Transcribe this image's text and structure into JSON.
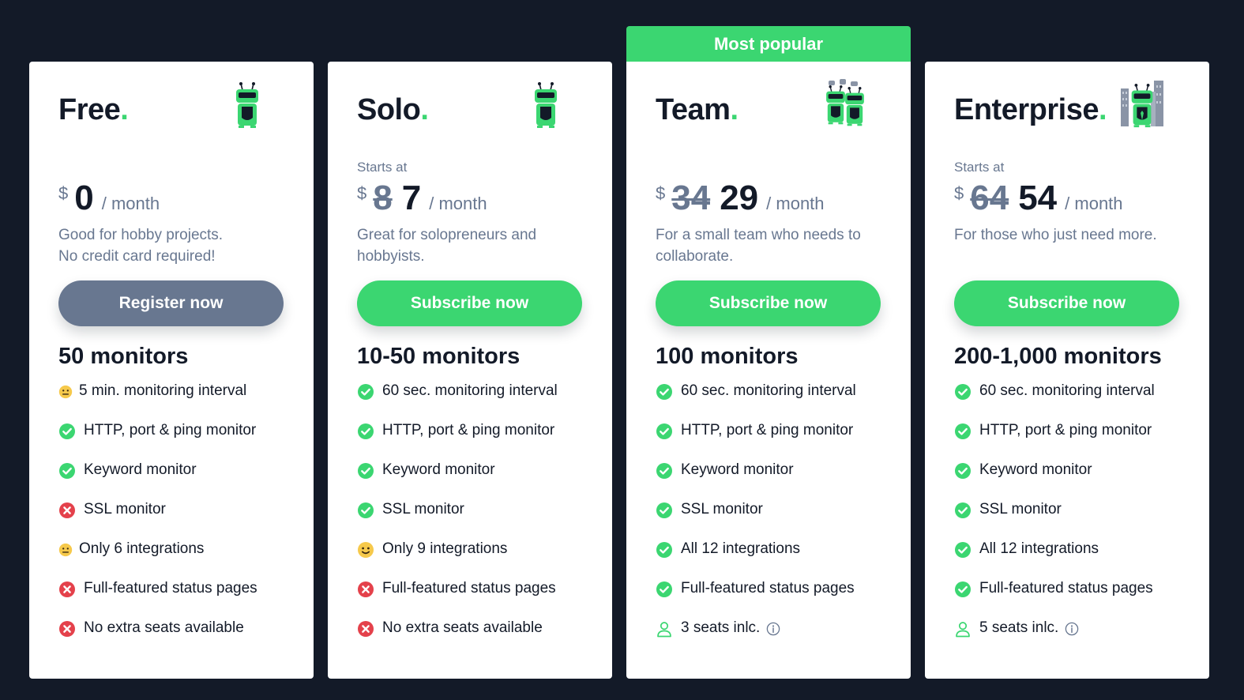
{
  "ribbon": "Most popular",
  "plans": [
    {
      "name": "Free",
      "dot": ".",
      "starts_at": "",
      "currency": "$",
      "old_price": "",
      "price": "0",
      "period": "/ month",
      "desc_line1": "Good for hobby projects.",
      "desc_line2": "No credit card required!",
      "cta": "Register now",
      "monitors": "50 monitors",
      "features": [
        {
          "text": "5 min. monitoring interval",
          "icon": "neutral-face-icon"
        },
        {
          "text": "HTTP, port & ping monitor",
          "icon": "check-icon"
        },
        {
          "text": "Keyword monitor",
          "icon": "check-icon"
        },
        {
          "text": "SSL monitor",
          "icon": "cross-icon"
        },
        {
          "text": "Only 6 integrations",
          "icon": "neutral-face-icon"
        },
        {
          "text": "Full-featured status pages",
          "icon": "cross-icon"
        },
        {
          "text": "No extra seats available",
          "icon": "cross-icon"
        }
      ]
    },
    {
      "name": "Solo",
      "dot": ".",
      "starts_at": "Starts at",
      "currency": "$",
      "old_price": "8",
      "price": "7",
      "period": "/ month",
      "desc_line1": "Great for solopreneurs and",
      "desc_line2": "hobbyists.",
      "cta": "Subscribe now",
      "monitors": "10-50 monitors",
      "features": [
        {
          "text": "60 sec. monitoring interval",
          "icon": "check-icon"
        },
        {
          "text": "HTTP, port & ping monitor",
          "icon": "check-icon"
        },
        {
          "text": "Keyword monitor",
          "icon": "check-icon"
        },
        {
          "text": "SSL monitor",
          "icon": "check-icon"
        },
        {
          "text": "Only 9 integrations",
          "icon": "smile-face-icon"
        },
        {
          "text": "Full-featured status pages",
          "icon": "cross-icon"
        },
        {
          "text": "No extra seats available",
          "icon": "cross-icon"
        }
      ]
    },
    {
      "name": "Team",
      "dot": ".",
      "starts_at": "",
      "currency": "$",
      "old_price": "34",
      "price": "29",
      "period": "/ month",
      "desc_line1": "For a small team who needs to",
      "desc_line2": "collaborate.",
      "cta": "Subscribe now",
      "monitors": "100 monitors",
      "features": [
        {
          "text": "60 sec. monitoring interval",
          "icon": "check-icon"
        },
        {
          "text": "HTTP, port & ping monitor",
          "icon": "check-icon"
        },
        {
          "text": "Keyword monitor",
          "icon": "check-icon"
        },
        {
          "text": "SSL monitor",
          "icon": "check-icon"
        },
        {
          "text": "All 12 integrations",
          "icon": "check-icon"
        },
        {
          "text": "Full-featured status pages",
          "icon": "check-icon"
        },
        {
          "text": "3 seats inlc.",
          "icon": "user-icon"
        }
      ]
    },
    {
      "name": "Enterprise",
      "dot": ".",
      "starts_at": "Starts at",
      "currency": "$",
      "old_price": "64",
      "price": "54",
      "period": "/ month",
      "desc_line1": "For those who just need more.",
      "desc_line2": "",
      "cta": "Subscribe now",
      "monitors": "200-1,000 monitors",
      "features": [
        {
          "text": "60 sec. monitoring interval",
          "icon": "check-icon"
        },
        {
          "text": "HTTP, port & ping monitor",
          "icon": "check-icon"
        },
        {
          "text": "Keyword monitor",
          "icon": "check-icon"
        },
        {
          "text": "SSL monitor",
          "icon": "check-icon"
        },
        {
          "text": "All 12 integrations",
          "icon": "check-icon"
        },
        {
          "text": "Full-featured status pages",
          "icon": "check-icon"
        },
        {
          "text": "5 seats inlc.",
          "icon": "user-icon"
        }
      ]
    }
  ],
  "colors": {
    "background": "#131a28",
    "accent": "#3bd671",
    "muted": "#687790",
    "cross": "#e4414b",
    "emoji": "#f6c94b"
  }
}
